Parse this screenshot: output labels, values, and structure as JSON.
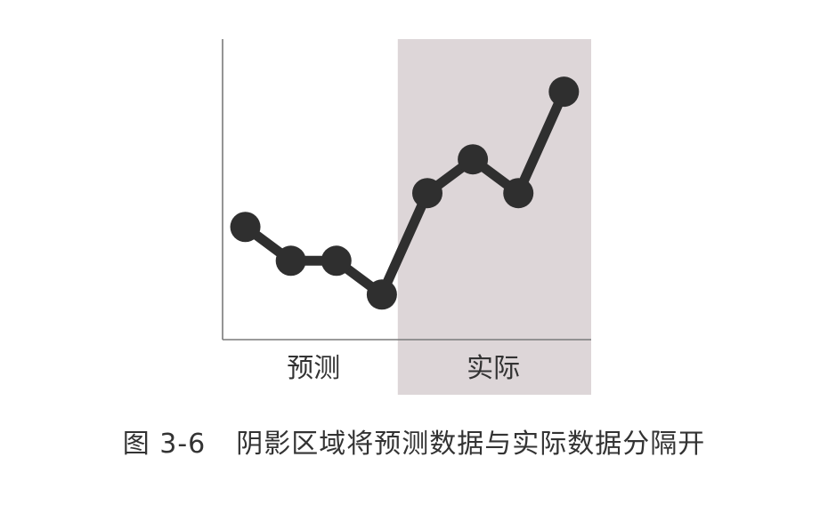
{
  "caption": {
    "figure_number": "图 3-6",
    "text": "阴影区域将预测数据与实际数据分隔开"
  },
  "colors": {
    "line": "#2f2f2f",
    "marker": "#2f2f2f",
    "shade": "#ddd6d8",
    "axis": "#7a7a7a",
    "text": "#333333"
  },
  "chart_data": {
    "type": "line",
    "title": "",
    "xlabel": "",
    "ylabel": "",
    "grid": false,
    "legend": "none",
    "x": [
      1,
      2,
      3,
      4,
      5,
      6,
      7,
      8
    ],
    "series": [
      {
        "values": [
          2.8,
          1.9,
          1.9,
          1.0,
          3.7,
          4.6,
          3.7,
          6.4
        ]
      }
    ],
    "xlim": [
      0.5,
      8.6
    ],
    "ylim": [
      -0.2,
      7.8
    ],
    "shaded_region": {
      "x_from": 4.35,
      "x_to": 8.6
    },
    "region_labels": [
      {
        "text": "预测",
        "x": 2.5
      },
      {
        "text": "实际",
        "x": 6.45
      }
    ]
  }
}
